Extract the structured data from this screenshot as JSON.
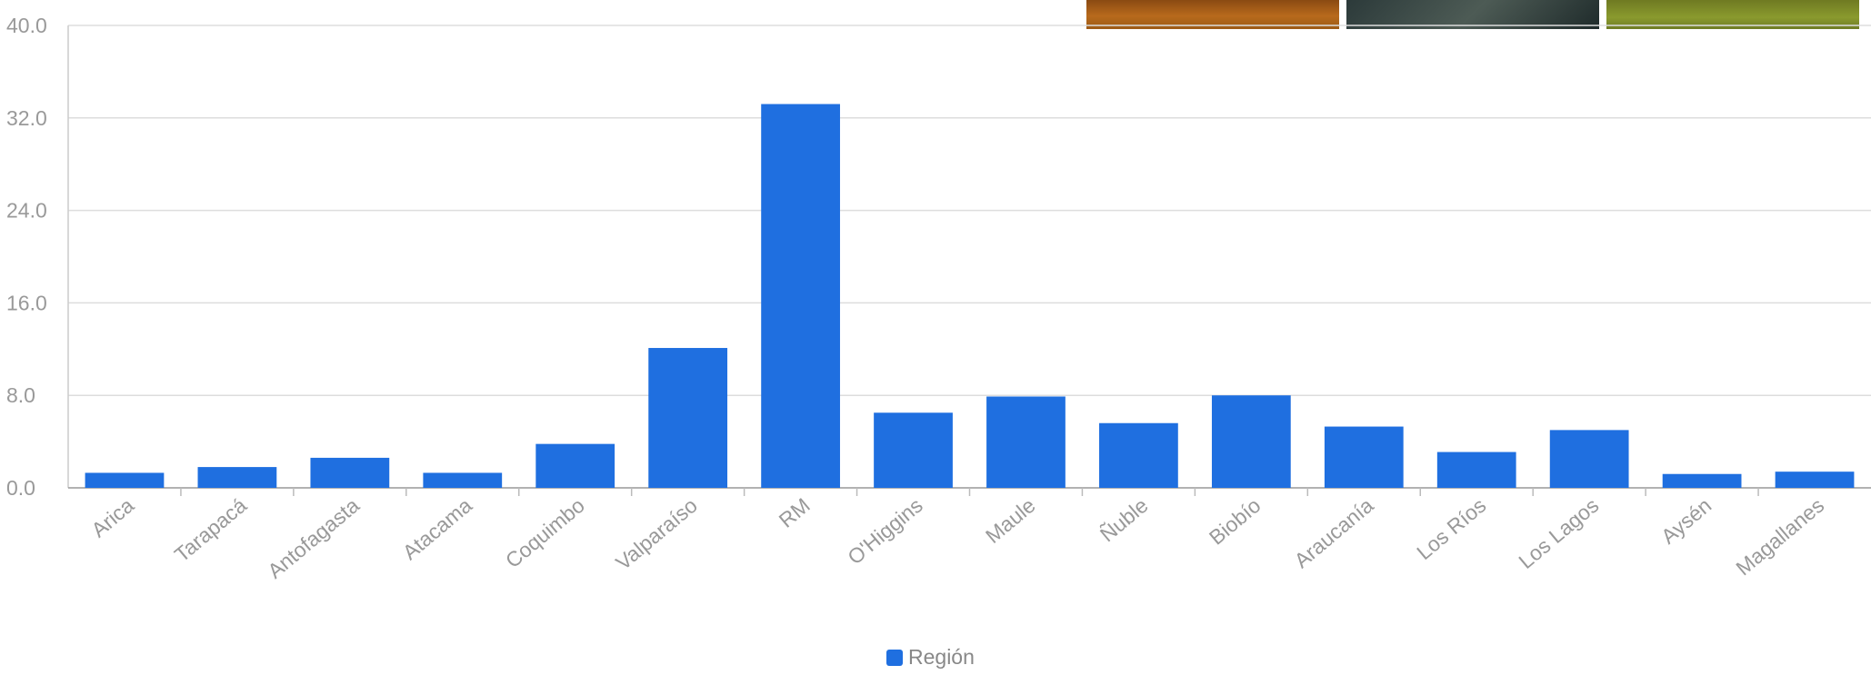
{
  "thumbnails": [
    "landscape-thumbnail-orange",
    "landscape-thumbnail-road",
    "landscape-thumbnail-field"
  ],
  "chart_data": {
    "type": "bar",
    "categories": [
      "Arica",
      "Tarapacá",
      "Antofagasta",
      "Atacama",
      "Coquimbo",
      "Valparaíso",
      "RM",
      "O'Higgins",
      "Maule",
      "Ñuble",
      "Biobío",
      "Araucanía",
      "Los Ríos",
      "Los Lagos",
      "Aysén",
      "Magallanes"
    ],
    "series": [
      {
        "name": "Región",
        "values": [
          1.3,
          1.8,
          2.6,
          1.3,
          3.8,
          12.1,
          33.2,
          6.5,
          7.9,
          5.6,
          8.0,
          5.3,
          3.1,
          5.0,
          1.2,
          1.4
        ]
      }
    ],
    "ylim": [
      0,
      40
    ],
    "yticks": [
      "0.0",
      "8.0",
      "16.0",
      "24.0",
      "32.0",
      "40.0"
    ],
    "grid": true,
    "legend_position": "bottom-center",
    "bar_color": "#1f6fe0"
  }
}
